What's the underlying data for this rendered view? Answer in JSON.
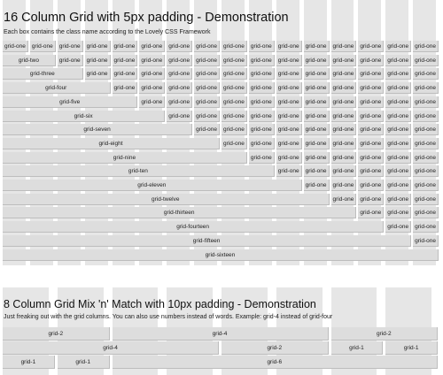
{
  "section1": {
    "title": "16 Column Grid with 5px padding - Demonstration",
    "subtitle": "Each box contains the class name according to the Lovely CSS Framework",
    "labels": [
      "grid-one",
      "grid-two",
      "grid-three",
      "grid-four",
      "grid-five",
      "grid-six",
      "grid-seven",
      "grid-eight",
      "grid-nine",
      "grid-ten",
      "grid-eleven",
      "grid-twelve",
      "grid-thirteen",
      "grid-fourteen",
      "grid-fifteen",
      "grid-sixteen"
    ]
  },
  "section2": {
    "title": "8 Column Grid Mix 'n' Match with 10px padding - Demonstration",
    "subtitle": "Just freaking out with the grid columns. You can also use numbers instead of words. Example: grid-4 instead of grid-four",
    "rows": [
      [
        {
          "span": 2,
          "label": "grid-2"
        },
        {
          "span": 4,
          "label": "grid-4"
        },
        {
          "span": 2,
          "label": "grid-2"
        }
      ],
      [
        {
          "span": 4,
          "label": "grid-4"
        },
        {
          "span": 2,
          "label": "grid-2"
        },
        {
          "span": 1,
          "label": "grid-1"
        },
        {
          "span": 1,
          "label": "grid-1"
        }
      ],
      [
        {
          "span": 1,
          "label": "grid-1"
        },
        {
          "span": 1,
          "label": "grid-1"
        },
        {
          "span": 6,
          "label": "grid-6"
        }
      ]
    ]
  }
}
